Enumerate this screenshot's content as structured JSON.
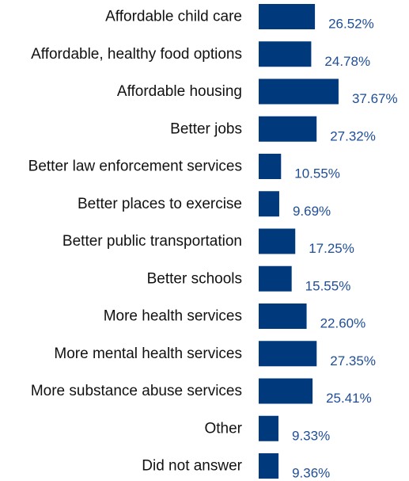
{
  "colors": {
    "bar": "#003a7d",
    "value_label": "#1f4e96",
    "category_label": "#111111"
  },
  "chart_data": {
    "type": "bar",
    "orientation": "horizontal",
    "title": "",
    "xlabel": "",
    "ylabel": "",
    "xlim": [
      0,
      40
    ],
    "grid": false,
    "legend": "none",
    "categories": [
      "Affordable child care",
      "Affordable, healthy food options",
      "Affordable housing",
      "Better jobs",
      "Better law enforcement services",
      "Better places to exercise",
      "Better public transportation",
      "Better schools",
      "More health services",
      "More mental health services",
      "More substance abuse services",
      "Other",
      "Did not answer"
    ],
    "values": [
      26.52,
      24.78,
      37.67,
      27.32,
      10.55,
      9.69,
      17.25,
      15.55,
      22.6,
      27.35,
      25.41,
      9.33,
      9.36
    ],
    "value_labels": [
      "26.52%",
      "24.78%",
      "37.67%",
      "27.32%",
      "10.55%",
      "9.69%",
      "17.25%",
      "15.55%",
      "22.60%",
      "27.35%",
      "25.41%",
      "9.33%",
      "9.36%"
    ]
  }
}
